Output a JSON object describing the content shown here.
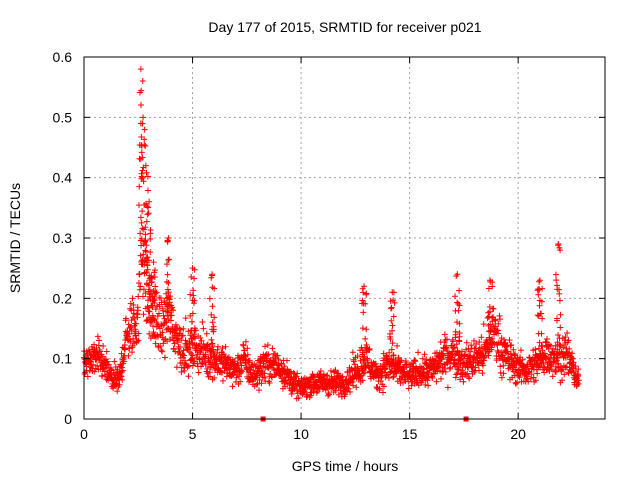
{
  "chart_data": {
    "type": "scatter",
    "title": "Day 177 of 2015, SRMTID for receiver p021",
    "xlabel": "GPS time / hours",
    "ylabel": "SRMTID / TECUs",
    "xlim": [
      0,
      24
    ],
    "ylim": [
      0,
      0.6
    ],
    "x_ticks": [
      0,
      5,
      10,
      15,
      20
    ],
    "x_tick_labels": [
      "0",
      "5",
      "10",
      "15",
      "20"
    ],
    "y_ticks": [
      0,
      0.1,
      0.2,
      0.3,
      0.4,
      0.5,
      0.6
    ],
    "y_tick_labels": [
      "0",
      "0.1",
      "0.2",
      "0.3",
      "0.4",
      "0.5",
      "0.6"
    ],
    "grid": true,
    "marker": "+",
    "colors": {
      "series": "#ff0000",
      "axis": "#000000",
      "grid": "#a0a0a0"
    },
    "gap_markers": [
      8.25,
      17.6
    ],
    "data_range_hours": [
      0.0,
      22.8
    ],
    "series_shape": [
      [
        0.0,
        0.09
      ],
      [
        0.3,
        0.1
      ],
      [
        0.6,
        0.1
      ],
      [
        0.9,
        0.09
      ],
      [
        1.2,
        0.07
      ],
      [
        1.6,
        0.06
      ],
      [
        1.9,
        0.13
      ],
      [
        2.2,
        0.15
      ],
      [
        2.5,
        0.17
      ],
      [
        2.65,
        0.3
      ],
      [
        2.8,
        0.25
      ],
      [
        3.0,
        0.18
      ],
      [
        3.3,
        0.16
      ],
      [
        3.6,
        0.15
      ],
      [
        3.9,
        0.17
      ],
      [
        4.2,
        0.14
      ],
      [
        4.5,
        0.12
      ],
      [
        4.8,
        0.11
      ],
      [
        5.1,
        0.12
      ],
      [
        5.5,
        0.11
      ],
      [
        6.0,
        0.1
      ],
      [
        6.5,
        0.09
      ],
      [
        7.0,
        0.08
      ],
      [
        7.4,
        0.1
      ],
      [
        7.8,
        0.07
      ],
      [
        8.3,
        0.09
      ],
      [
        8.8,
        0.09
      ],
      [
        9.2,
        0.08
      ],
      [
        9.6,
        0.06
      ],
      [
        10.0,
        0.05
      ],
      [
        10.5,
        0.06
      ],
      [
        11.0,
        0.06
      ],
      [
        11.5,
        0.06
      ],
      [
        12.0,
        0.06
      ],
      [
        12.5,
        0.08
      ],
      [
        13.0,
        0.1
      ],
      [
        13.5,
        0.07
      ],
      [
        14.0,
        0.09
      ],
      [
        14.5,
        0.08
      ],
      [
        15.0,
        0.07
      ],
      [
        15.5,
        0.08
      ],
      [
        16.0,
        0.08
      ],
      [
        16.5,
        0.1
      ],
      [
        17.0,
        0.11
      ],
      [
        17.5,
        0.09
      ],
      [
        18.0,
        0.1
      ],
      [
        18.5,
        0.11
      ],
      [
        18.9,
        0.15
      ],
      [
        19.3,
        0.11
      ],
      [
        19.8,
        0.09
      ],
      [
        20.3,
        0.08
      ],
      [
        20.8,
        0.09
      ],
      [
        21.3,
        0.11
      ],
      [
        21.8,
        0.1
      ],
      [
        22.2,
        0.11
      ],
      [
        22.8,
        0.06
      ]
    ],
    "spikes": [
      {
        "x": 2.62,
        "peak": 0.58
      },
      {
        "x": 2.72,
        "peak": 0.5
      },
      {
        "x": 2.85,
        "peak": 0.42
      },
      {
        "x": 3.0,
        "peak": 0.36
      },
      {
        "x": 3.2,
        "peak": 0.26
      },
      {
        "x": 3.9,
        "peak": 0.3
      },
      {
        "x": 5.0,
        "peak": 0.25
      },
      {
        "x": 5.9,
        "peak": 0.24
      },
      {
        "x": 12.9,
        "peak": 0.22
      },
      {
        "x": 14.2,
        "peak": 0.21
      },
      {
        "x": 17.2,
        "peak": 0.24
      },
      {
        "x": 18.7,
        "peak": 0.23
      },
      {
        "x": 21.0,
        "peak": 0.23
      },
      {
        "x": 21.85,
        "peak": 0.29
      }
    ]
  }
}
